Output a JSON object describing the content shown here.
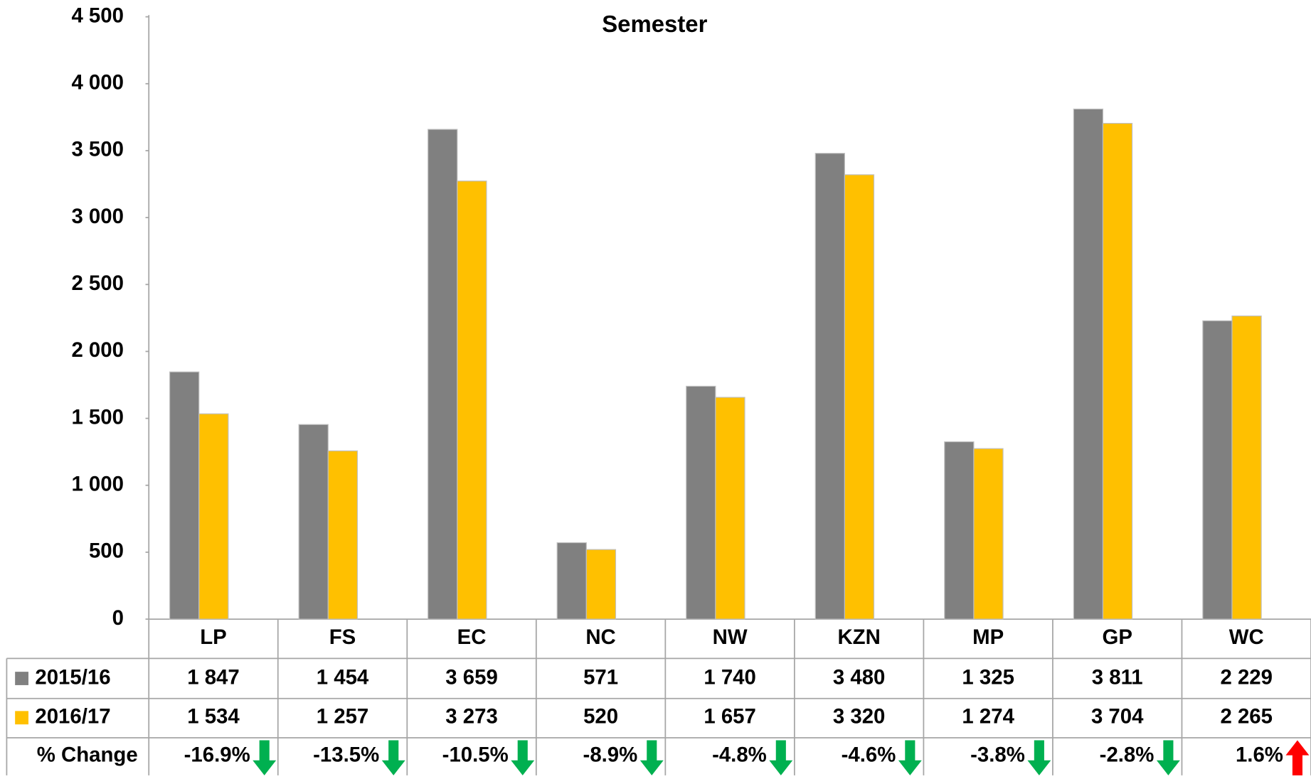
{
  "chart_data": {
    "type": "bar",
    "title": "Semester",
    "categories": [
      "LP",
      "FS",
      "EC",
      "NC",
      "NW",
      "KZN",
      "MP",
      "GP",
      "WC"
    ],
    "series": [
      {
        "name": "2015/16",
        "color": "#808080",
        "values": [
          1847,
          1454,
          3659,
          571,
          1740,
          3480,
          1325,
          3811,
          2229
        ],
        "value_labels": [
          "1 847",
          "1 454",
          "3 659",
          "571",
          "1 740",
          "3 480",
          "1 325",
          "3 811",
          "2 229"
        ]
      },
      {
        "name": "2016/17",
        "color": "#ffc000",
        "values": [
          1534,
          1257,
          3273,
          520,
          1657,
          3320,
          1274,
          3704,
          2265
        ],
        "value_labels": [
          "1 534",
          "1 257",
          "3 273",
          "520",
          "1 657",
          "3 320",
          "1 274",
          "3 704",
          "2 265"
        ]
      }
    ],
    "change": {
      "name": "% Change",
      "values": [
        -16.9,
        -13.5,
        -10.5,
        -8.9,
        -4.8,
        -4.6,
        -3.8,
        -2.8,
        1.6
      ],
      "value_labels": [
        "-16.9%",
        "-13.5%",
        "-10.5%",
        "-8.9%",
        "-4.8%",
        "-4.6%",
        "-3.8%",
        "-2.8%",
        "1.6%"
      ],
      "down_color": "#00b050",
      "up_color": "#ff0000"
    },
    "ylim": [
      0,
      4500
    ],
    "yticks": [
      0,
      500,
      {
        "value": 1000,
        "label": "1 000"
      },
      {
        "value": 1500,
        "label": "1 500"
      },
      {
        "value": 2000,
        "label": "2 000"
      },
      {
        "value": 2500,
        "label": "2 500"
      },
      {
        "value": 3000,
        "label": "3 000"
      },
      {
        "value": 3500,
        "label": "3 500"
      },
      {
        "value": 4000,
        "label": "4 000"
      },
      {
        "value": 4500,
        "label": "4 500"
      }
    ]
  }
}
